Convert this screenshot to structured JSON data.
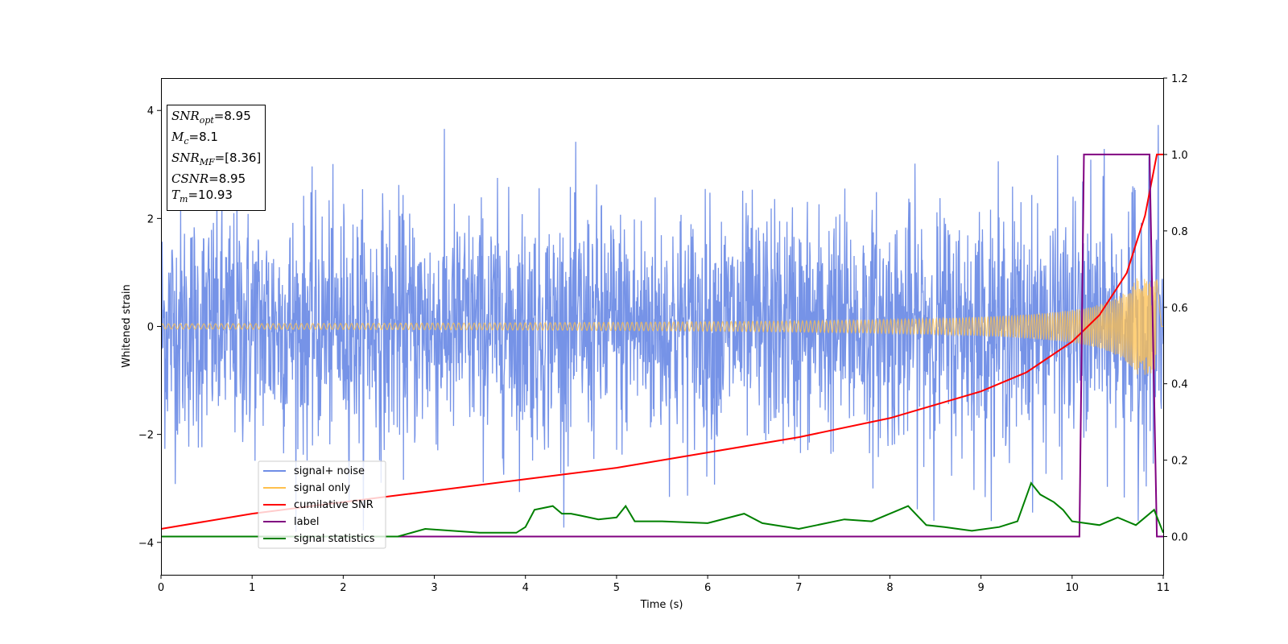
{
  "chart_data": {
    "type": "line",
    "title": "",
    "xlabel": "Time (s)",
    "ylabel": "Whitened strain",
    "xlim": [
      0,
      11
    ],
    "ylim": [
      -4.6,
      4.6
    ],
    "y2lim": [
      -0.1,
      1.2
    ],
    "x_ticks": [
      "0",
      "1",
      "2",
      "3",
      "4",
      "5",
      "6",
      "7",
      "8",
      "9",
      "10",
      "11"
    ],
    "y_ticks": [
      "4",
      "2",
      "0",
      "−2",
      "−4"
    ],
    "y2_ticks": [
      "1.2",
      "1.0",
      "0.8",
      "0.6",
      "0.4",
      "0.2",
      "0.0"
    ],
    "legend_position": "lower-left",
    "colors": {
      "signal_noise": "#6f8de6",
      "signal_only": "#ffc04d",
      "cumulative_snr": "#ff0000",
      "label": "#800080",
      "signal_statistics": "#008000"
    },
    "series": [
      {
        "name": "signal+ noise",
        "axis": "left",
        "description_values": "white noise, std approx 1.1, peaks to about 3.8"
      },
      {
        "name": "signal only",
        "axis": "left",
        "amplitude_start": 0.03,
        "amplitude_end": 0.9,
        "merger_time": 10.93
      },
      {
        "name": "cumilative SNR",
        "axis": "right",
        "x": [
          0,
          1,
          2,
          3,
          4,
          5,
          6,
          7,
          8,
          9,
          9.5,
          10,
          10.3,
          10.6,
          10.8,
          10.93,
          11
        ],
        "values": [
          0.02,
          0.06,
          0.09,
          0.12,
          0.15,
          0.18,
          0.22,
          0.26,
          0.31,
          0.38,
          0.43,
          0.51,
          0.58,
          0.69,
          0.84,
          1.0,
          1.0
        ]
      },
      {
        "name": "label",
        "axis": "right",
        "x": [
          0,
          10.08,
          10.13,
          10.85,
          10.93,
          11
        ],
        "values": [
          0.0,
          0.0,
          1.0,
          1.0,
          0.0,
          0.0
        ]
      },
      {
        "name": "signal statistics",
        "axis": "right",
        "x": [
          0,
          1,
          2,
          2.6,
          2.9,
          3.5,
          3.9,
          4.0,
          4.1,
          4.3,
          4.4,
          4.5,
          4.6,
          4.8,
          5.0,
          5.1,
          5.2,
          5.5,
          6.0,
          6.4,
          6.6,
          7.0,
          7.2,
          7.5,
          7.8,
          8.0,
          8.2,
          8.4,
          8.6,
          8.9,
          9.2,
          9.4,
          9.55,
          9.65,
          9.8,
          9.9,
          10.0,
          10.3,
          10.5,
          10.7,
          10.8,
          10.9,
          11
        ],
        "values": [
          0.0,
          0.0,
          0.0,
          0.0,
          0.02,
          0.01,
          0.01,
          0.025,
          0.07,
          0.08,
          0.06,
          0.06,
          0.055,
          0.045,
          0.05,
          0.08,
          0.04,
          0.04,
          0.035,
          0.06,
          0.035,
          0.02,
          0.03,
          0.045,
          0.04,
          0.06,
          0.08,
          0.03,
          0.025,
          0.015,
          0.025,
          0.04,
          0.14,
          0.11,
          0.09,
          0.07,
          0.04,
          0.03,
          0.05,
          0.03,
          0.05,
          0.07,
          0.01
        ]
      }
    ],
    "annotation_box": {
      "snr_opt": "=8.95",
      "mc": "=8.1",
      "snr_mf": "=[8.36]",
      "csnr": "=8.95",
      "tm": "=10.93"
    }
  },
  "info": {
    "snr_opt_sym": "SNR",
    "snr_opt_sub": "opt",
    "mc_sym": "M",
    "mc_sub": "c",
    "snr_mf_sym": "SNR",
    "snr_mf_sub": "MF",
    "csnr_sym": "CSNR",
    "tm_sym": "T",
    "tm_sub": "m"
  },
  "legend": [
    "signal+ noise",
    "signal only",
    "cumilative SNR",
    "label",
    "signal statistics"
  ]
}
